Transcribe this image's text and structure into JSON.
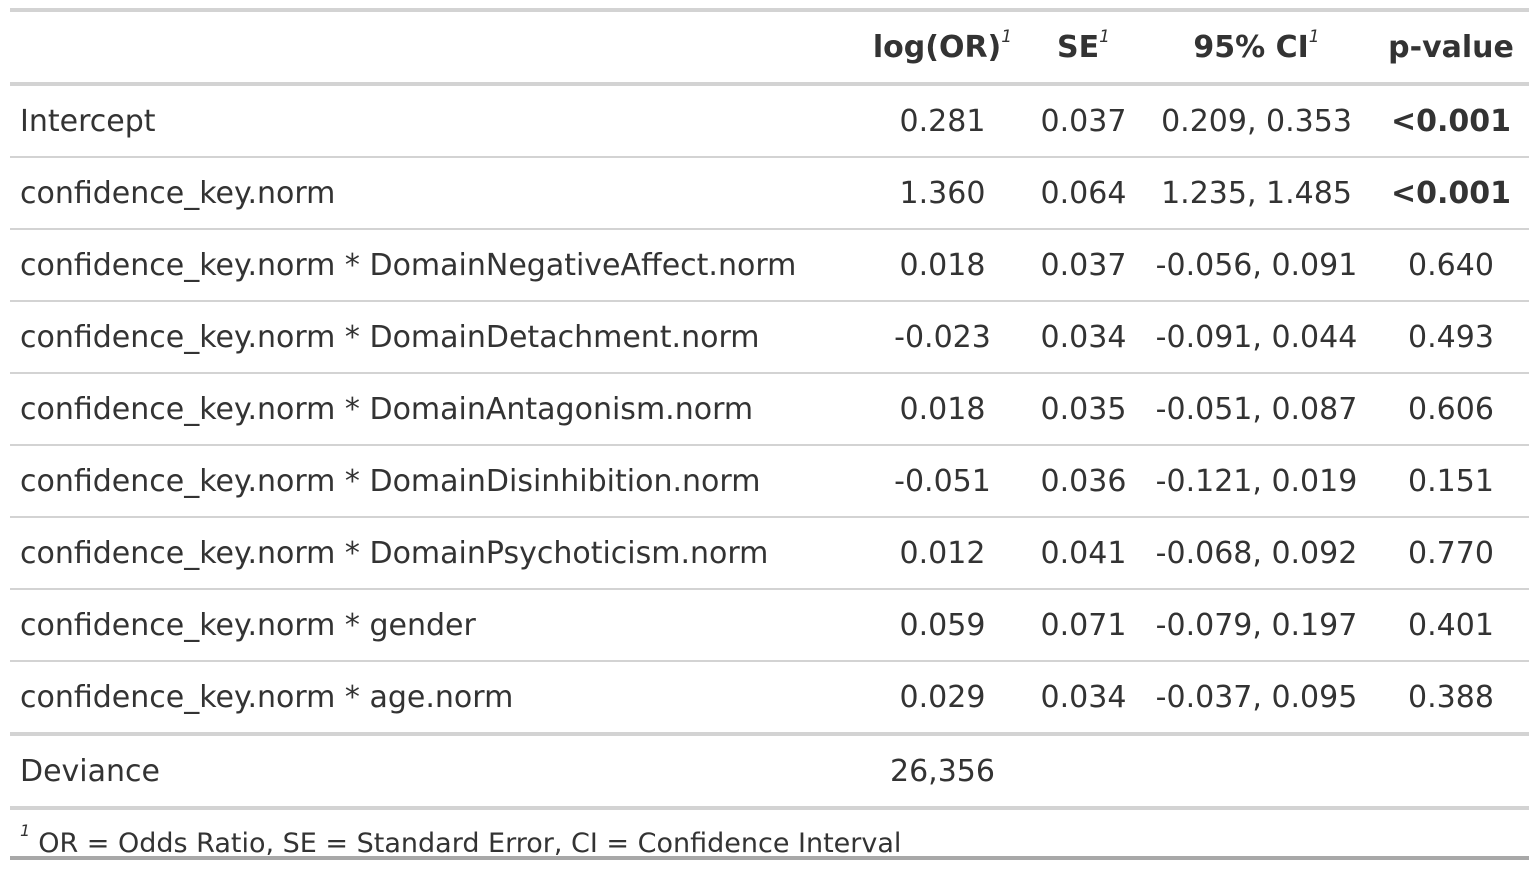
{
  "table": {
    "headers": {
      "label": "",
      "estimate": "log(OR)",
      "se": "SE",
      "ci": "95% CI",
      "p_value": "p-value",
      "footnote_marker": "1"
    },
    "rows": [
      {
        "label": "Intercept",
        "estimate": "0.281",
        "se": "0.037",
        "ci": "0.209, 0.353",
        "p": "<0.001",
        "p_bold": true
      },
      {
        "label": "confidence_key.norm",
        "estimate": "1.360",
        "se": "0.064",
        "ci": "1.235, 1.485",
        "p": "<0.001",
        "p_bold": true
      },
      {
        "label": "confidence_key.norm * DomainNegativeAffect.norm",
        "estimate": "0.018",
        "se": "0.037",
        "ci": "-0.056, 0.091",
        "p": "0.640",
        "p_bold": false
      },
      {
        "label": "confidence_key.norm * DomainDetachment.norm",
        "estimate": "-0.023",
        "se": "0.034",
        "ci": "-0.091, 0.044",
        "p": "0.493",
        "p_bold": false
      },
      {
        "label": "confidence_key.norm * DomainAntagonism.norm",
        "estimate": "0.018",
        "se": "0.035",
        "ci": "-0.051, 0.087",
        "p": "0.606",
        "p_bold": false
      },
      {
        "label": "confidence_key.norm * DomainDisinhibition.norm",
        "estimate": "-0.051",
        "se": "0.036",
        "ci": "-0.121, 0.019",
        "p": "0.151",
        "p_bold": false
      },
      {
        "label": "confidence_key.norm * DomainPsychoticism.norm",
        "estimate": "0.012",
        "se": "0.041",
        "ci": "-0.068, 0.092",
        "p": "0.770",
        "p_bold": false
      },
      {
        "label": "confidence_key.norm * gender",
        "estimate": "0.059",
        "se": "0.071",
        "ci": "-0.079, 0.197",
        "p": "0.401",
        "p_bold": false
      },
      {
        "label": "confidence_key.norm * age.norm",
        "estimate": "0.029",
        "se": "0.034",
        "ci": "-0.037, 0.095",
        "p": "0.388",
        "p_bold": false
      }
    ],
    "glance": {
      "label": "Deviance",
      "estimate": "26,356"
    },
    "footnote": {
      "marker": "1",
      "text": "OR = Odds Ratio, SE = Standard Error, CI = Confidence Interval"
    }
  }
}
